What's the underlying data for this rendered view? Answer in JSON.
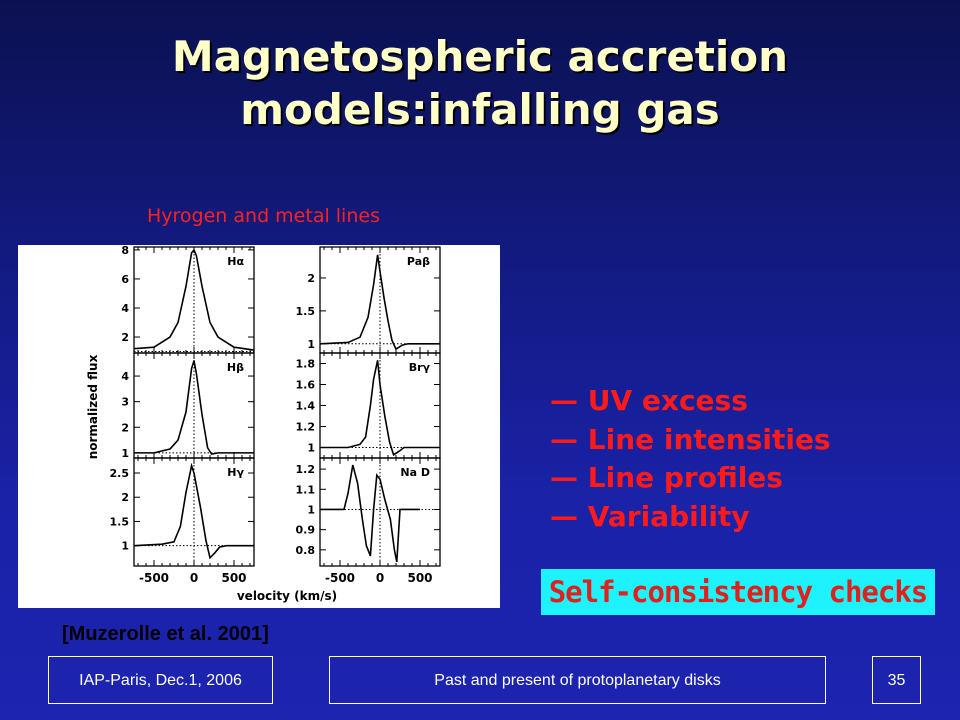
{
  "slide": {
    "title_line1": "Magnetospheric accretion",
    "title_line2": "models:infalling gas",
    "figure_caption": "Hyrogen and metal lines",
    "bullets": [
      "— UV excess",
      "— Line intensities",
      "— Line profiles",
      "— Variability"
    ],
    "highlight": "Self-consistency checks",
    "reference": "[Muzerolle et al. 2001]"
  },
  "footer": {
    "left": "IAP-Paris, Dec.1, 2006",
    "center": "Past and present of protoplanetary disks",
    "page_number": "35"
  },
  "chart_data": {
    "type": "line",
    "xlabel": "velocity (km/s)",
    "ylabel": "normalized flux",
    "xlim": [
      -750,
      750
    ],
    "xticks": [
      "-500",
      "0",
      "500"
    ],
    "xtick_values": [
      -500,
      0,
      500
    ],
    "panels": [
      {
        "name": "Hα",
        "ylim": [
          0.9,
          8.2
        ],
        "yticks": [
          2,
          4,
          6,
          8
        ],
        "ytick_labels": [
          "2",
          "4",
          "6",
          "8"
        ],
        "points": [
          [
            -750,
            1.2
          ],
          [
            -500,
            1.3
          ],
          [
            -300,
            2
          ],
          [
            -200,
            3
          ],
          [
            -100,
            5.5
          ],
          [
            -30,
            7.8
          ],
          [
            0,
            8
          ],
          [
            30,
            7.6
          ],
          [
            100,
            5.5
          ],
          [
            200,
            3
          ],
          [
            300,
            2
          ],
          [
            500,
            1.3
          ],
          [
            750,
            1.1
          ]
        ]
      },
      {
        "name": "Paβ",
        "ylim": [
          0.86,
          2.47
        ],
        "yticks": [
          1,
          1.5,
          2
        ],
        "ytick_labels": [
          "1",
          "1.5",
          "2"
        ],
        "points": [
          [
            -750,
            1
          ],
          [
            -400,
            1.02
          ],
          [
            -250,
            1.1
          ],
          [
            -150,
            1.4
          ],
          [
            -80,
            1.9
          ],
          [
            -30,
            2.35
          ],
          [
            0,
            2.1
          ],
          [
            50,
            1.7
          ],
          [
            100,
            1.35
          ],
          [
            150,
            1.05
          ],
          [
            200,
            0.92
          ],
          [
            280,
            0.98
          ],
          [
            350,
            1
          ],
          [
            750,
            1
          ]
        ]
      },
      {
        "name": "Hβ",
        "ylim": [
          0.8,
          4.9
        ],
        "yticks": [
          1,
          2,
          3,
          4
        ],
        "ytick_labels": [
          "1",
          "2",
          "3",
          "4"
        ],
        "points": [
          [
            -750,
            1
          ],
          [
            -500,
            1
          ],
          [
            -300,
            1.15
          ],
          [
            -200,
            1.5
          ],
          [
            -100,
            2.6
          ],
          [
            -30,
            4.3
          ],
          [
            0,
            4.6
          ],
          [
            30,
            4.1
          ],
          [
            100,
            2.5
          ],
          [
            170,
            1.2
          ],
          [
            220,
            0.95
          ],
          [
            300,
            1
          ],
          [
            750,
            1
          ]
        ]
      },
      {
        "name": "Brγ",
        "ylim": [
          0.9,
          1.9
        ],
        "yticks": [
          1,
          1.2,
          1.4,
          1.6,
          1.8
        ],
        "ytick_labels": [
          "1",
          "1.2",
          "1.4",
          "1.6",
          "1.8"
        ],
        "points": [
          [
            -750,
            1
          ],
          [
            -400,
            1
          ],
          [
            -250,
            1.03
          ],
          [
            -180,
            1.1
          ],
          [
            -120,
            1.4
          ],
          [
            -80,
            1.65
          ],
          [
            -30,
            1.83
          ],
          [
            0,
            1.6
          ],
          [
            60,
            1.3
          ],
          [
            120,
            1.05
          ],
          [
            170,
            0.93
          ],
          [
            250,
            0.97
          ],
          [
            300,
            1
          ],
          [
            750,
            1
          ]
        ]
      },
      {
        "name": "Hγ",
        "ylim": [
          0.58,
          2.81
        ],
        "yticks": [
          1,
          1.5,
          2,
          2.5
        ],
        "ytick_labels": [
          "1",
          "1.5",
          "2",
          "2.5"
        ],
        "points": [
          [
            -750,
            1
          ],
          [
            -400,
            1.03
          ],
          [
            -250,
            1.08
          ],
          [
            -170,
            1.4
          ],
          [
            -100,
            2.1
          ],
          [
            -30,
            2.65
          ],
          [
            0,
            2.5
          ],
          [
            80,
            1.8
          ],
          [
            150,
            1.1
          ],
          [
            200,
            0.75
          ],
          [
            260,
            0.85
          ],
          [
            320,
            0.97
          ],
          [
            400,
            1
          ],
          [
            750,
            1
          ]
        ]
      },
      {
        "name": "Na D",
        "ylim": [
          0.72,
          1.255
        ],
        "yticks": [
          0.8,
          0.9,
          1,
          1.1,
          1.2
        ],
        "ytick_labels": [
          "0.8",
          "0.9",
          "1",
          "1.1",
          "1.2"
        ],
        "points": [
          [
            -750,
            1
          ],
          [
            -450,
            1
          ],
          [
            -400,
            1.08
          ],
          [
            -340,
            1.22
          ],
          [
            -280,
            1.13
          ],
          [
            -220,
            0.95
          ],
          [
            -170,
            0.82
          ],
          [
            -120,
            0.77
          ],
          [
            -80,
            1
          ],
          [
            -40,
            1.17
          ],
          [
            0,
            1.15
          ],
          [
            60,
            1.05
          ],
          [
            130,
            0.95
          ],
          [
            180,
            0.8
          ],
          [
            210,
            0.74
          ],
          [
            250,
            1
          ],
          [
            500,
            1
          ]
        ]
      }
    ]
  }
}
